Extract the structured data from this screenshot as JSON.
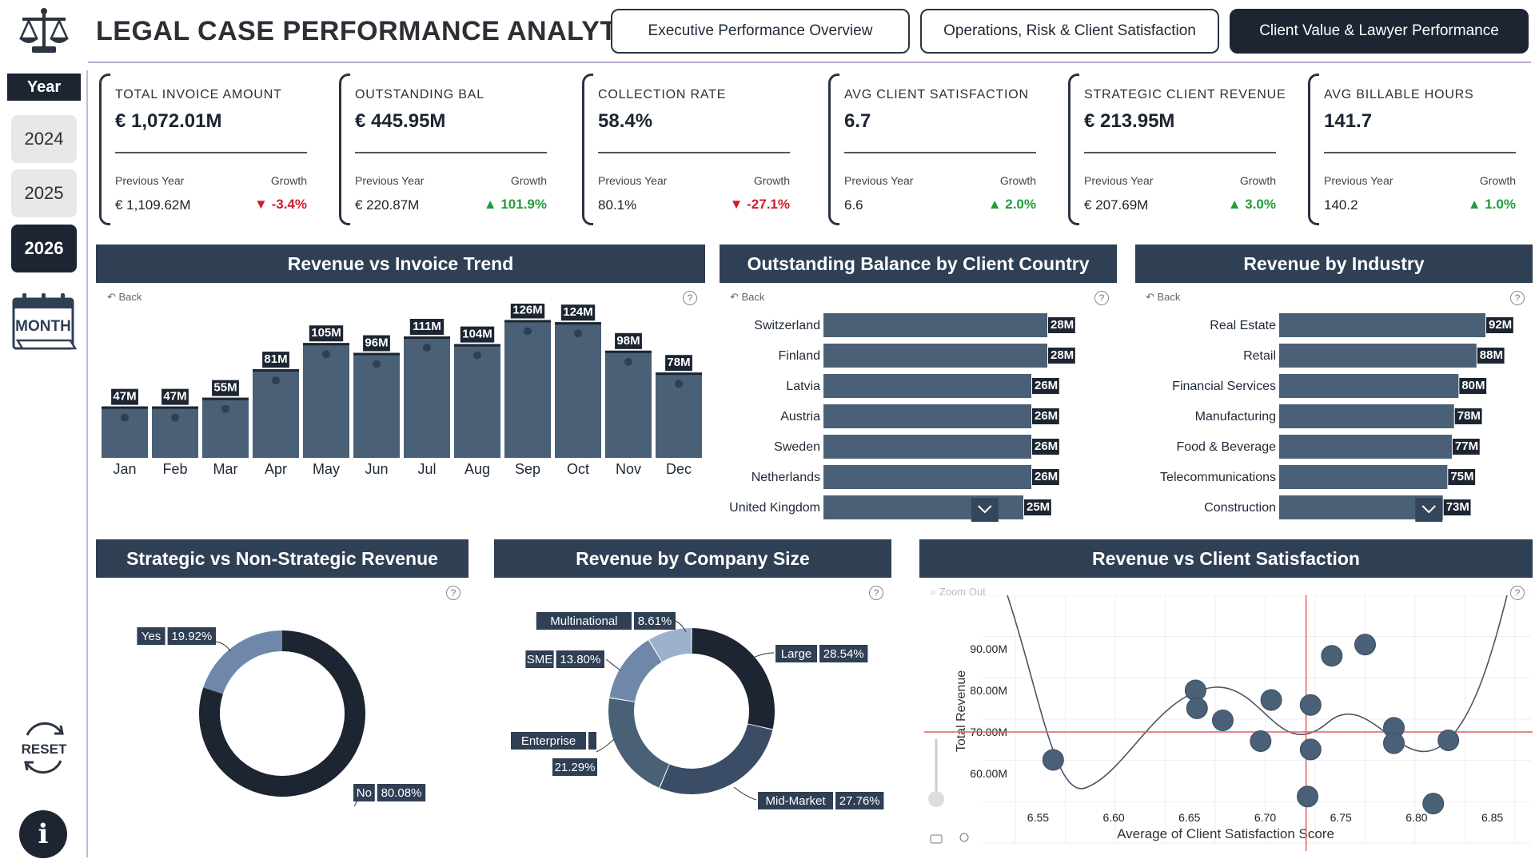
{
  "header": {
    "title": "LEGAL CASE PERFORMANCE ANALYTICS",
    "nav": [
      {
        "label": "Executive Performance Overview",
        "active": false
      },
      {
        "label": "Operations, Risk & Client Satisfaction",
        "active": false
      },
      {
        "label": "Client Value & Lawyer Performance",
        "active": true
      }
    ]
  },
  "slicer": {
    "title": "Year",
    "years": [
      "2024",
      "2025",
      "2026"
    ],
    "selected": "2026",
    "month_icon_label": "MONTH",
    "reset_label": "RESET",
    "info_label": "i"
  },
  "kpis": [
    {
      "label": "TOTAL INVOICE AMOUNT",
      "value": "€ 1,072.01M",
      "prev_label": "Previous Year",
      "prev": "€ 1,109.62M",
      "growth_label": "Growth",
      "growth": "-3.4%",
      "dir": "down"
    },
    {
      "label": "OUTSTANDING BAL",
      "value": "€ 445.95M",
      "prev_label": "Previous Year",
      "prev": "€ 220.87M",
      "growth_label": "Growth",
      "growth": "101.9%",
      "dir": "up"
    },
    {
      "label": "COLLECTION RATE",
      "value": "58.4%",
      "prev_label": "Previous Year",
      "prev": "80.1%",
      "growth_label": "Growth",
      "growth": "-27.1%",
      "dir": "down"
    },
    {
      "label": "AVG CLIENT SATISFACTION",
      "value": "6.7",
      "prev_label": "Previous Year",
      "prev": "6.6",
      "growth_label": "Growth",
      "growth": "2.0%",
      "dir": "up"
    },
    {
      "label": "STRATEGIC CLIENT REVENUE",
      "value": "€ 213.95M",
      "prev_label": "Previous Year",
      "prev": "€ 207.69M",
      "growth_label": "Growth",
      "growth": "3.0%",
      "dir": "up"
    },
    {
      "label": "AVG BILLABLE HOURS",
      "value": "141.7",
      "prev_label": "Previous Year",
      "prev": "140.2",
      "growth_label": "Growth",
      "growth": "1.0%",
      "dir": "up"
    }
  ],
  "common": {
    "back": "Back",
    "help": "?",
    "zoom": "Zoom Out"
  },
  "colors": {
    "bar": "#4a6076",
    "dark": "#1c2531",
    "panel": "#2f3f54",
    "mid": "#3b4d66",
    "light": "#6f87a8",
    "lighter": "#9db1cc",
    "refline": "#e06060"
  },
  "chart_data": [
    {
      "id": "trend",
      "type": "bar",
      "title": "Revenue vs Invoice Trend",
      "categories": [
        "Jan",
        "Feb",
        "Mar",
        "Apr",
        "May",
        "Jun",
        "Jul",
        "Aug",
        "Sep",
        "Oct",
        "Nov",
        "Dec"
      ],
      "values": [
        47,
        47,
        55,
        81,
        105,
        96,
        111,
        104,
        126,
        124,
        98,
        78
      ],
      "labels": [
        "47M",
        "47M",
        "55M",
        "81M",
        "105M",
        "96M",
        "111M",
        "104M",
        "126M",
        "124M",
        "98M",
        "78M"
      ],
      "ylim": [
        0,
        130
      ]
    },
    {
      "id": "country",
      "type": "bar",
      "title": "Outstanding Balance by Client Country",
      "categories": [
        "Switzerland",
        "Finland",
        "Latvia",
        "Austria",
        "Sweden",
        "Netherlands",
        "United Kingdom"
      ],
      "values": [
        28,
        28,
        26,
        26,
        26,
        26,
        25
      ],
      "labels": [
        "28M",
        "28M",
        "26M",
        "26M",
        "26M",
        "26M",
        "25M"
      ],
      "xlim": [
        0,
        28
      ]
    },
    {
      "id": "industry",
      "type": "bar",
      "title": "Revenue by Industry",
      "categories": [
        "Real Estate",
        "Retail",
        "Financial Services",
        "Manufacturing",
        "Food & Beverage",
        "Telecommunications",
        "Construction"
      ],
      "values": [
        92,
        88,
        80,
        78,
        77,
        75,
        73
      ],
      "labels": [
        "92M",
        "88M",
        "80M",
        "78M",
        "77M",
        "75M",
        "73M"
      ],
      "xlim": [
        0,
        92
      ]
    },
    {
      "id": "strategic",
      "type": "pie",
      "title": "Strategic vs Non-Strategic Revenue",
      "slices": [
        {
          "name": "Yes",
          "pct": 19.92,
          "label": "19.92%"
        },
        {
          "name": "No",
          "pct": 80.08,
          "label": "80.08%"
        }
      ]
    },
    {
      "id": "size",
      "type": "pie",
      "title": "Revenue by Company Size",
      "slices": [
        {
          "name": "Large",
          "pct": 28.54,
          "label": "28.54%"
        },
        {
          "name": "Mid-Market",
          "pct": 27.76,
          "label": "27.76%"
        },
        {
          "name": "Enterprise",
          "pct": 21.29,
          "label": "21.29%"
        },
        {
          "name": "SME",
          "pct": 13.8,
          "label": "13.80%"
        },
        {
          "name": "Multinational",
          "pct": 8.61,
          "label": "8.61%"
        }
      ]
    },
    {
      "id": "scatter",
      "type": "scatter",
      "title": "Revenue vs Client Satisfaction",
      "xlabel": "Average of Client Satisfaction Score",
      "ylabel": "Total Revenue",
      "xticks": [
        "6.55",
        "6.60",
        "6.65",
        "6.70",
        "6.75",
        "6.80",
        "6.85"
      ],
      "yticks": [
        "60.00M",
        "70.00M",
        "80.00M",
        "90.00M"
      ],
      "xlim": [
        6.535,
        6.865
      ],
      "ylim": [
        51,
        99
      ],
      "ref_x": 6.727,
      "ref_y": 70.0,
      "points": [
        {
          "x": 6.56,
          "y": 63.3
        },
        {
          "x": 6.654,
          "y": 80.0
        },
        {
          "x": 6.655,
          "y": 75.7
        },
        {
          "x": 6.672,
          "y": 72.8
        },
        {
          "x": 6.697,
          "y": 67.8
        },
        {
          "x": 6.704,
          "y": 77.7
        },
        {
          "x": 6.728,
          "y": 54.5
        },
        {
          "x": 6.73,
          "y": 76.5
        },
        {
          "x": 6.73,
          "y": 65.8
        },
        {
          "x": 6.744,
          "y": 88.3
        },
        {
          "x": 6.766,
          "y": 91.0
        },
        {
          "x": 6.785,
          "y": 71.0
        },
        {
          "x": 6.785,
          "y": 67.3
        },
        {
          "x": 6.821,
          "y": 68.0
        },
        {
          "x": 6.811,
          "y": 52.8
        }
      ]
    }
  ]
}
